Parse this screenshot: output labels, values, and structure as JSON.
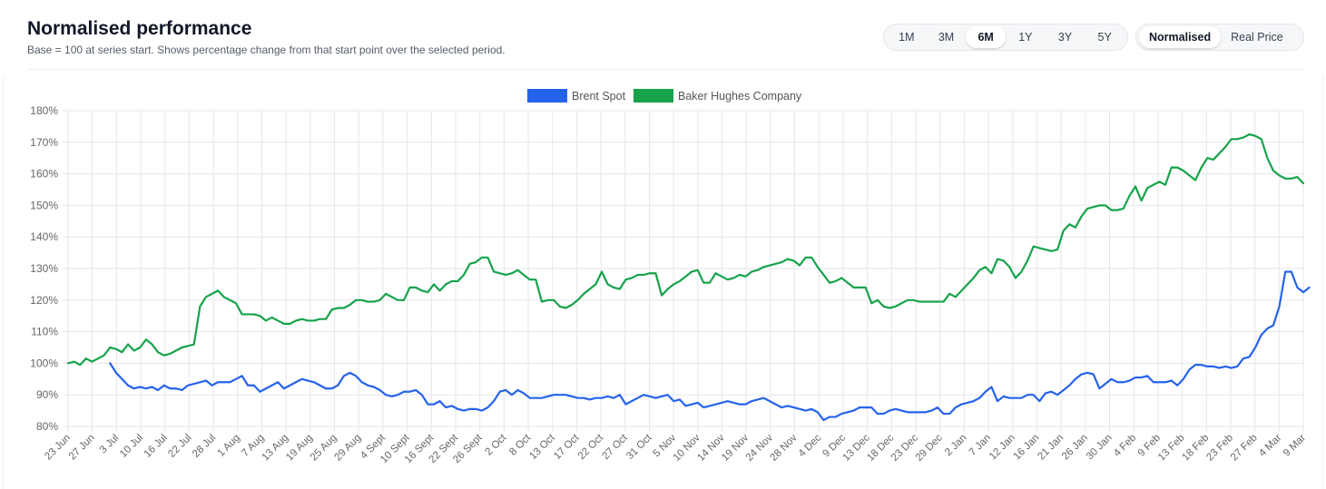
{
  "header": {
    "title": "Normalised performance",
    "subtitle": "Base = 100 at series start. Shows percentage change from that start point over the selected period."
  },
  "range_buttons": [
    {
      "label": "1M",
      "active": false
    },
    {
      "label": "3M",
      "active": false
    },
    {
      "label": "6M",
      "active": true
    },
    {
      "label": "1Y",
      "active": false
    },
    {
      "label": "3Y",
      "active": false
    },
    {
      "label": "5Y",
      "active": false
    }
  ],
  "mode_buttons": [
    {
      "label": "Normalised",
      "active": true
    },
    {
      "label": "Real Price",
      "active": false
    }
  ],
  "colors": {
    "brent": "#2563eb",
    "baker": "#16a34a",
    "grid": "#e5e7eb",
    "axis_text": "#666666"
  },
  "chart_data": {
    "type": "line",
    "title": "",
    "xlabel": "",
    "ylabel": "",
    "ylim": [
      80,
      180
    ],
    "y_ticks": [
      80,
      90,
      100,
      110,
      120,
      130,
      140,
      150,
      160,
      170,
      180
    ],
    "y_tick_labels": [
      "80%",
      "90%",
      "100%",
      "110%",
      "120%",
      "130%",
      "140%",
      "150%",
      "160%",
      "170%",
      "180%"
    ],
    "x_tick_labels": [
      "23 Jun",
      "27 Jun",
      "3 Jul",
      "10 Jul",
      "16 Jul",
      "22 Jul",
      "28 Jul",
      "1 Aug",
      "7 Aug",
      "13 Aug",
      "19 Aug",
      "25 Aug",
      "29 Aug",
      "4 Sept",
      "10 Sept",
      "16 Sept",
      "22 Sept",
      "26 Sept",
      "2 Oct",
      "8 Oct",
      "13 Oct",
      "17 Oct",
      "22 Oct",
      "27 Oct",
      "31 Oct",
      "5 Nov",
      "10 Nov",
      "14 Nov",
      "19 Nov",
      "24 Nov",
      "28 Nov",
      "4 Dec",
      "9 Dec",
      "13 Dec",
      "18 Dec",
      "23 Dec",
      "29 Dec",
      "2 Jan",
      "7 Jan",
      "12 Jan",
      "16 Jan",
      "21 Jan",
      "26 Jan",
      "30 Jan",
      "4 Feb",
      "9 Feb",
      "13 Feb",
      "18 Feb",
      "23 Feb",
      "27 Feb",
      "4 Mar",
      "9 Mar"
    ],
    "legend": [
      "Brent Spot",
      "Baker Hughes Company"
    ],
    "series": [
      {
        "name": "Brent Spot",
        "start_index": 7,
        "values": [
          100,
          97,
          95,
          93,
          92,
          92.5,
          92,
          92.5,
          91.5,
          93,
          92,
          92,
          91.5,
          93,
          93.5,
          94,
          94.5,
          93,
          94,
          94,
          94,
          95,
          96,
          93,
          93,
          91,
          92,
          93,
          94,
          92,
          93,
          94,
          95,
          94.5,
          94,
          93,
          92,
          92,
          93,
          96,
          97,
          96,
          94,
          93,
          92.5,
          91.5,
          90,
          89.5,
          90,
          91,
          91,
          91.5,
          90,
          87,
          87,
          88,
          86,
          86.5,
          85.5,
          85,
          85.5,
          85.5,
          85,
          86,
          88,
          91,
          91.5,
          90,
          91.5,
          90.5,
          89,
          89,
          89,
          89.5,
          90,
          90,
          90,
          89.5,
          89,
          89,
          88.5,
          89,
          89,
          89.5,
          89,
          90,
          87,
          88,
          89,
          90,
          89.5,
          89,
          89.5,
          90,
          88,
          88.5,
          86.5,
          87,
          87.5,
          86,
          86.5,
          87,
          87.5,
          88,
          87.5,
          87,
          87,
          88,
          88.5,
          89,
          88,
          87,
          86,
          86.5,
          86,
          85.5,
          85,
          85.5,
          84.5,
          82,
          83,
          83,
          84,
          84.5,
          85,
          86,
          86,
          86,
          84,
          84,
          85,
          85.5,
          85,
          84.5,
          84.5,
          84.5,
          84.5,
          85,
          86,
          84,
          84,
          86,
          87,
          87.5,
          88,
          89,
          91,
          92.5,
          88,
          89.5,
          89,
          89,
          89,
          90,
          90,
          88,
          90.5,
          91,
          90,
          91.5,
          93,
          95,
          96.5,
          97,
          96.5,
          92,
          93.5,
          95,
          94,
          94,
          94.5,
          95.5,
          95.5,
          96,
          94,
          94,
          94,
          94.5,
          93,
          95,
          98,
          99.5,
          99.5,
          99,
          99,
          98.5,
          99,
          98.5,
          99,
          101.5,
          102,
          105,
          109,
          111,
          112,
          118,
          129,
          129,
          124,
          122.5,
          124
        ]
      },
      {
        "name": "Baker Hughes Company",
        "start_index": 0,
        "values": [
          100,
          100.5,
          99.5,
          101.5,
          100.5,
          101.5,
          102.5,
          105,
          104.5,
          103.5,
          106,
          104,
          105,
          107.5,
          106,
          103.5,
          102.5,
          103,
          104,
          105,
          105.5,
          106,
          118,
          121,
          122,
          123,
          121,
          120,
          119,
          115.5,
          115.5,
          115.5,
          115,
          113.5,
          114.5,
          113.5,
          112.5,
          112.5,
          113.5,
          114,
          113.5,
          113.5,
          114,
          114,
          117,
          117.5,
          117.5,
          118.5,
          120,
          120,
          119.5,
          119.5,
          120,
          122,
          121,
          120,
          120,
          124,
          124,
          123,
          122.5,
          125,
          123,
          125,
          126,
          126,
          128,
          131.5,
          132,
          133.5,
          133.5,
          129,
          128.5,
          128,
          128.5,
          129.5,
          128,
          126.5,
          126.5,
          119.5,
          120,
          120,
          118,
          117.5,
          118.5,
          120,
          122,
          123.5,
          125,
          129,
          125,
          124,
          123.5,
          126.5,
          127,
          128,
          128,
          128.5,
          128.5,
          121.5,
          123.5,
          125,
          126,
          127.5,
          129,
          129.5,
          125.5,
          125.5,
          128.5,
          127.5,
          126.5,
          127,
          128,
          127.5,
          129,
          129.5,
          130.5,
          131,
          131.5,
          132,
          133,
          132.5,
          131,
          133.5,
          133.5,
          130.5,
          128,
          125.5,
          126,
          127,
          125.5,
          124,
          124,
          124,
          119,
          120,
          118,
          117.5,
          118,
          119,
          120,
          120,
          119.5,
          119.5,
          119.5,
          119.5,
          119.5,
          122,
          121,
          123,
          125,
          127,
          129.5,
          130.5,
          128.5,
          133,
          132.5,
          130.5,
          127,
          129,
          132.5,
          137,
          136.5,
          136,
          135.5,
          136,
          142,
          144,
          143,
          146.5,
          149,
          149.5,
          150,
          150,
          148.5,
          148.5,
          149,
          153,
          156,
          151.5,
          155.5,
          156.5,
          157.5,
          156.5,
          162,
          162,
          161,
          159.5,
          158,
          162,
          165,
          164.5,
          166.5,
          168.5,
          171,
          171,
          171.5,
          172.5,
          172,
          171,
          165,
          161,
          159.5,
          158.5,
          158.5,
          159,
          157
        ]
      }
    ]
  }
}
